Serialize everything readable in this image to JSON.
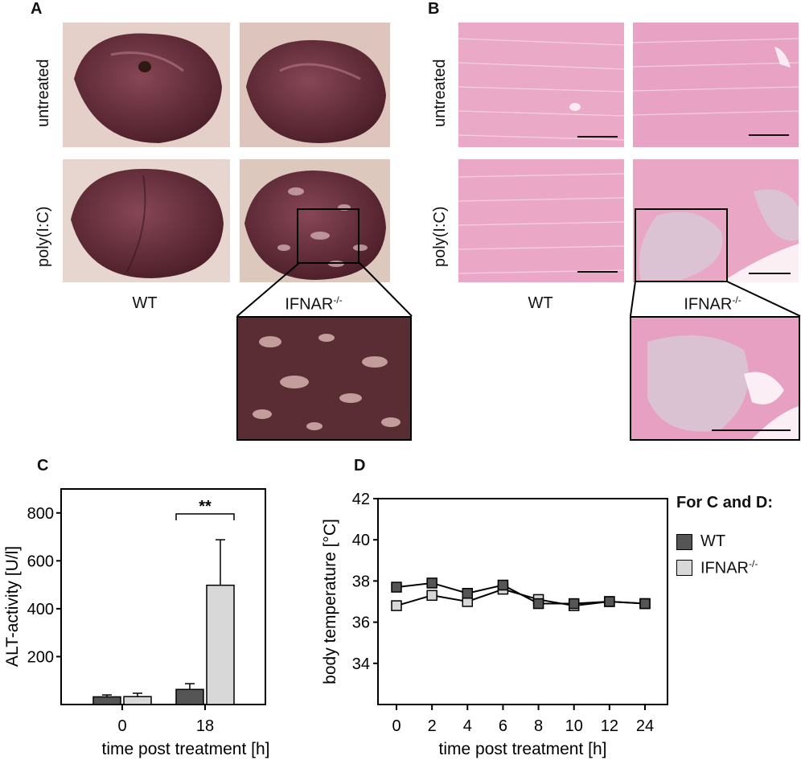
{
  "panels": {
    "a": "A",
    "b": "B",
    "c": "C",
    "d": "D"
  },
  "figure_labels": {
    "row_untreated": "untreated",
    "row_polyic": "poly(I:C)",
    "col_wt": "WT",
    "col_ifnar_base": "IFNAR",
    "col_ifnar_sup": "-/-"
  },
  "legend": {
    "title": "For C and D:",
    "wt_label": "WT",
    "ifnar_base": "IFNAR",
    "ifnar_sup": "-/-"
  },
  "colors": {
    "wt": "#555555",
    "ifnar": "#d8d8d8",
    "liver": "#6b2a36",
    "histo": "#e7a6c6"
  },
  "chart_data": [
    {
      "type": "bar",
      "title": "",
      "xlabel": "time post treatment [h]",
      "ylabel": "ALT-activity [U/l]",
      "categories": [
        "0",
        "18"
      ],
      "ylim": [
        0,
        900
      ],
      "yticks": [
        200,
        400,
        600,
        800
      ],
      "series": [
        {
          "name": "WT",
          "values": [
            32,
            63
          ],
          "errors": [
            8,
            24
          ]
        },
        {
          "name": "IFNAR-/-",
          "values": [
            33,
            498
          ],
          "errors": [
            14,
            190
          ]
        }
      ],
      "annotation": {
        "text": "**",
        "category": "18"
      }
    },
    {
      "type": "line",
      "title": "",
      "xlabel": "time post treatment [h]",
      "ylabel": "body temperature [°C]",
      "x": [
        "0",
        "2",
        "4",
        "6",
        "8",
        "10",
        "12",
        "24"
      ],
      "ylim": [
        32,
        42
      ],
      "yticks": [
        34,
        36,
        38,
        40,
        42
      ],
      "series": [
        {
          "name": "WT",
          "values": [
            37.7,
            37.9,
            37.4,
            37.8,
            36.9,
            36.9,
            37.0,
            36.9
          ]
        },
        {
          "name": "IFNAR-/-",
          "values": [
            36.8,
            37.3,
            37.0,
            37.6,
            37.1,
            36.8,
            37.0,
            36.9
          ]
        }
      ]
    }
  ]
}
